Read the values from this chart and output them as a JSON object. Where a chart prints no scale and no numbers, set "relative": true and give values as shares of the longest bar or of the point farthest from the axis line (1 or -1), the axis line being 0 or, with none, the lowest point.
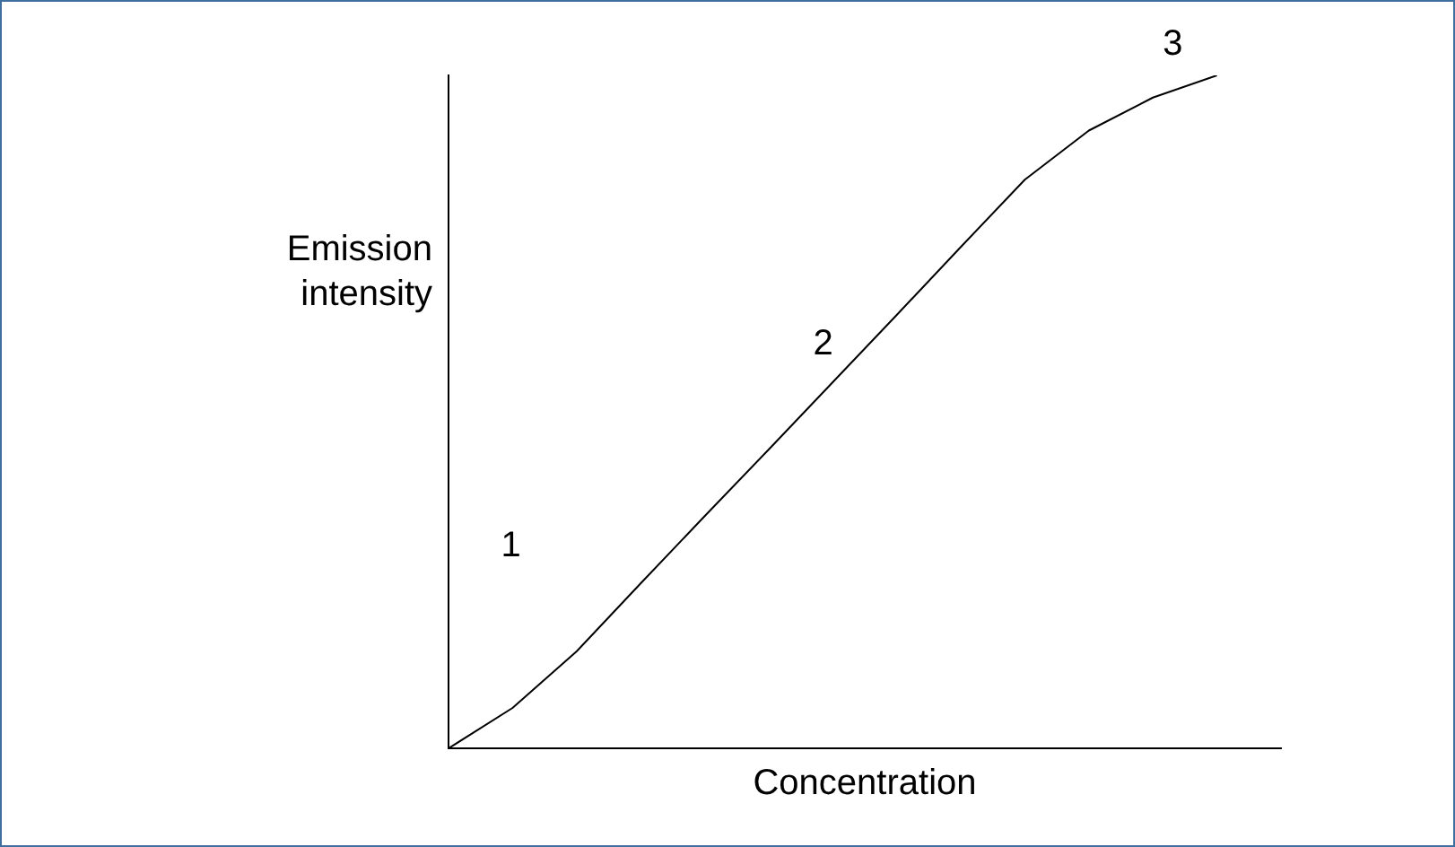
{
  "chart_data": {
    "type": "line",
    "relative": true,
    "xlabel": "Concentration",
    "ylabel": "Emission intensity",
    "categories": [
      null,
      null,
      null,
      null,
      null,
      null,
      null,
      null,
      null,
      null,
      null,
      null,
      null,
      null
    ],
    "series": [
      {
        "color": "#000000",
        "values": [
          0,
          0.06,
          0.144,
          0.245,
          0.345,
          0.444,
          0.544,
          0.644,
          0.745,
          0.845,
          0.918,
          0.967,
          1,
          null
        ]
      }
    ],
    "annotations": [
      "1",
      "2",
      "3"
    ],
    "grid": false,
    "legend": false,
    "marker": "none",
    "line_style": "solid"
  }
}
